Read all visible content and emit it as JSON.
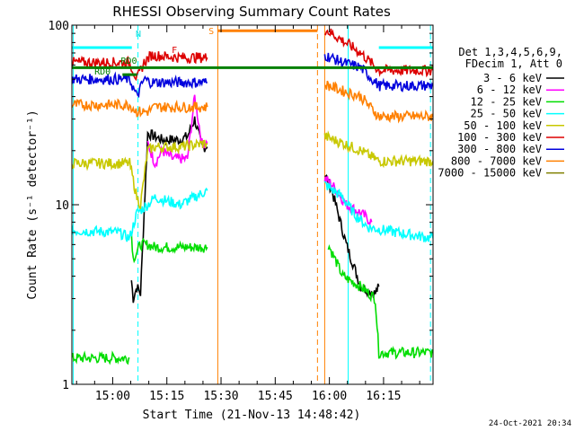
{
  "chart_data": {
    "type": "line",
    "title": "RHESSI Observing Summary Count Rates",
    "xlabel": "Start Time (21-Nov-13 14:48:42)",
    "ylabel": "Count Rate (s⁻¹ detector⁻¹)",
    "yscale": "log",
    "ylim": [
      1,
      100
    ],
    "xlim_minutes": [
      0,
      100
    ],
    "x_ticks": [
      {
        "label": "15:00",
        "minute": 11.3
      },
      {
        "label": "15:15",
        "minute": 26.3
      },
      {
        "label": "15:30",
        "minute": 41.3
      },
      {
        "label": "15:45",
        "minute": 56.3
      },
      {
        "label": "16:00",
        "minute": 71.3
      },
      {
        "label": "16:15",
        "minute": 86.3
      }
    ],
    "y_ticks": [
      {
        "label": "1",
        "value": 1
      },
      {
        "label": "10",
        "value": 10
      },
      {
        "label": "100",
        "value": 100
      }
    ],
    "legend_header": [
      "Det 1,3,4,5,6,9,",
      "FDecim 1, Att 0"
    ],
    "legend_position": "right",
    "series": [
      {
        "name": "3 - 6 keV",
        "color": "#000000",
        "segments": [
          [
            [
              16.5,
              3.8
            ],
            [
              17,
              3
            ],
            [
              18,
              3.5
            ],
            [
              19,
              3.2
            ],
            [
              21,
              25
            ],
            [
              25,
              23
            ],
            [
              30,
              23
            ],
            [
              32,
              24
            ],
            [
              34,
              30
            ],
            [
              36,
              21
            ],
            [
              37.5,
              21
            ]
          ],
          [
            [
              70,
              15
            ],
            [
              72,
              12
            ],
            [
              76,
              6
            ],
            [
              80,
              3.5
            ],
            [
              84,
              3.2
            ],
            [
              85,
              3.5
            ]
          ]
        ]
      },
      {
        "name": "6 - 12 keV",
        "color": "#ff00ff",
        "segments": [
          [
            [
              21,
              22
            ],
            [
              23,
              17
            ],
            [
              25,
              20
            ],
            [
              28,
              18
            ],
            [
              32,
              18
            ],
            [
              34,
              40
            ],
            [
              36,
              22
            ],
            [
              37.5,
              22
            ]
          ],
          [
            [
              70,
              14
            ],
            [
              72,
              13
            ],
            [
              76,
              10
            ],
            [
              80,
              9
            ],
            [
              83,
              8
            ]
          ]
        ]
      },
      {
        "name": "12 - 25 keV",
        "color": "#00dd00",
        "segments": [
          [
            [
              0,
              1.4
            ],
            [
              16,
              1.4
            ]
          ],
          [
            [
              16.5,
              7
            ],
            [
              17,
              5
            ],
            [
              19,
              6
            ],
            [
              21,
              6
            ],
            [
              23,
              5.8
            ],
            [
              30,
              5.8
            ],
            [
              37.5,
              5.8
            ]
          ],
          [
            [
              71,
              6
            ],
            [
              75,
              4
            ],
            [
              80,
              3.5
            ],
            [
              84,
              3
            ],
            [
              85,
              1.5
            ],
            [
              100,
              1.5
            ]
          ]
        ]
      },
      {
        "name": "25 - 50 keV",
        "color": "#00ffff",
        "segments": [
          [
            [
              0,
              7.2
            ],
            [
              13,
              7
            ],
            [
              16,
              6.5
            ],
            [
              18,
              9
            ],
            [
              21,
              10
            ],
            [
              23,
              11
            ],
            [
              30,
              10
            ],
            [
              37.5,
              12
            ]
          ],
          [
            [
              70,
              13
            ],
            [
              75,
              11
            ],
            [
              78,
              9
            ],
            [
              82,
              7.5
            ],
            [
              90,
              7
            ],
            [
              100,
              6.5
            ]
          ]
        ]
      },
      {
        "name": "50 - 100 keV",
        "color": "#c8c800",
        "segments": [
          [
            [
              0,
              17
            ],
            [
              16,
              17
            ],
            [
              18,
              11
            ],
            [
              19,
              10
            ],
            [
              21,
              20
            ],
            [
              23,
              21
            ],
            [
              30,
              21
            ],
            [
              37.5,
              22
            ]
          ],
          [
            [
              70,
              24
            ],
            [
              75,
              22
            ],
            [
              80,
              20
            ],
            [
              85,
              17.5
            ],
            [
              100,
              17.5
            ]
          ]
        ]
      },
      {
        "name": "100 - 300 keV",
        "color": "#dd0000",
        "segments": [
          [
            [
              0,
              62
            ],
            [
              16,
              62
            ],
            [
              18,
              50
            ],
            [
              20,
              62
            ],
            [
              22,
              68
            ],
            [
              30,
              66
            ],
            [
              37.5,
              66
            ]
          ],
          [
            [
              70,
              95
            ],
            [
              75,
              82
            ],
            [
              80,
              70
            ],
            [
              85,
              56
            ],
            [
              100,
              56
            ]
          ]
        ]
      },
      {
        "name": "300 - 800 keV",
        "color": "#0000dd",
        "segments": [
          [
            [
              0,
              50
            ],
            [
              16,
              50
            ],
            [
              18,
              40
            ],
            [
              20,
              50
            ],
            [
              22,
              48
            ],
            [
              37.5,
              48
            ]
          ],
          [
            [
              70,
              68
            ],
            [
              75,
              62
            ],
            [
              80,
              58
            ],
            [
              85,
              46
            ],
            [
              100,
              46
            ]
          ]
        ]
      },
      {
        "name": "800 - 7000 keV",
        "color": "#ff8000",
        "segments": [
          [
            [
              0,
              36
            ],
            [
              16,
              36
            ],
            [
              18,
              33
            ],
            [
              21,
              33
            ],
            [
              23,
              35
            ],
            [
              37.5,
              35
            ]
          ],
          [
            [
              70,
              47
            ],
            [
              75,
              43
            ],
            [
              80,
              40
            ],
            [
              85,
              31
            ],
            [
              100,
              31
            ]
          ]
        ]
      },
      {
        "name": "7000 - 15000 keV",
        "color": "#808000",
        "segments": []
      }
    ],
    "annotations": [
      {
        "text": "N",
        "color": "#00dddd",
        "minute": 18.4,
        "value": 86
      },
      {
        "text": "F",
        "color": "#dd0000",
        "minute": 28.4,
        "value": 70
      },
      {
        "text": "S",
        "color": "#ff8000",
        "minute": 38.6,
        "value": 89
      },
      {
        "text": "RD0",
        "color": "#008000",
        "minute": 8.5,
        "value": 53
      },
      {
        "text": "RD0",
        "color": "#008000",
        "minute": 15.8,
        "value": 61
      }
    ],
    "flags": [
      {
        "color": "#00ffff",
        "y": 75,
        "x0": 0,
        "x1": 16.6
      },
      {
        "color": "#00ffff",
        "y": 75,
        "x0": 85,
        "x1": 100
      },
      {
        "color": "#ff8000",
        "y": 93,
        "x0": 40.4,
        "x1": 68
      },
      {
        "color": "#008000",
        "y": 58,
        "x0": 0,
        "x1": 100
      },
      {
        "color": "#008000",
        "y": 53,
        "x0": 14,
        "x1": 18
      }
    ],
    "vlines": [
      {
        "minute": 0.4,
        "color": "#00ffff",
        "dash": false
      },
      {
        "minute": 18.3,
        "color": "#00ffff",
        "dash": true
      },
      {
        "minute": 40.4,
        "color": "#ff8000",
        "dash": false
      },
      {
        "minute": 68,
        "color": "#ff8000",
        "dash": true
      },
      {
        "minute": 70,
        "color": "#ff8000",
        "dash": false
      },
      {
        "minute": 76.5,
        "color": "#00ffff",
        "dash": false
      },
      {
        "minute": 99.3,
        "color": "#00ffff",
        "dash": true
      }
    ],
    "timestamp": "24-Oct-2021 20:34"
  }
}
